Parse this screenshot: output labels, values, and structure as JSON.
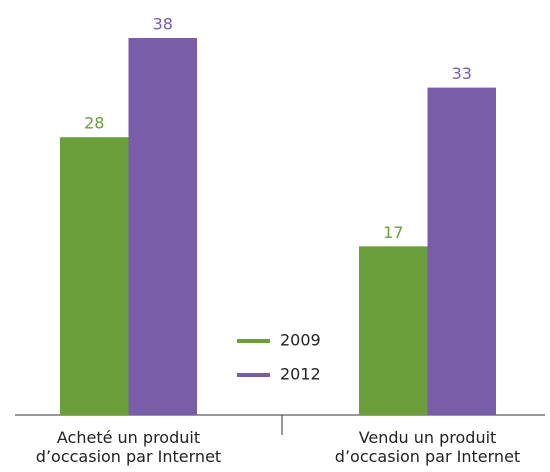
{
  "chart_data": {
    "type": "bar",
    "categories": [
      "Acheté un produit\nd’occasion par Internet",
      "Vendu un produit\nd’occasion par Internet"
    ],
    "series": [
      {
        "name": "2009",
        "color": "#6a9f3b",
        "values": [
          28,
          17
        ]
      },
      {
        "name": "2012",
        "color": "#7a5da8",
        "values": [
          38,
          33
        ]
      }
    ],
    "ylim": [
      0,
      38
    ]
  }
}
